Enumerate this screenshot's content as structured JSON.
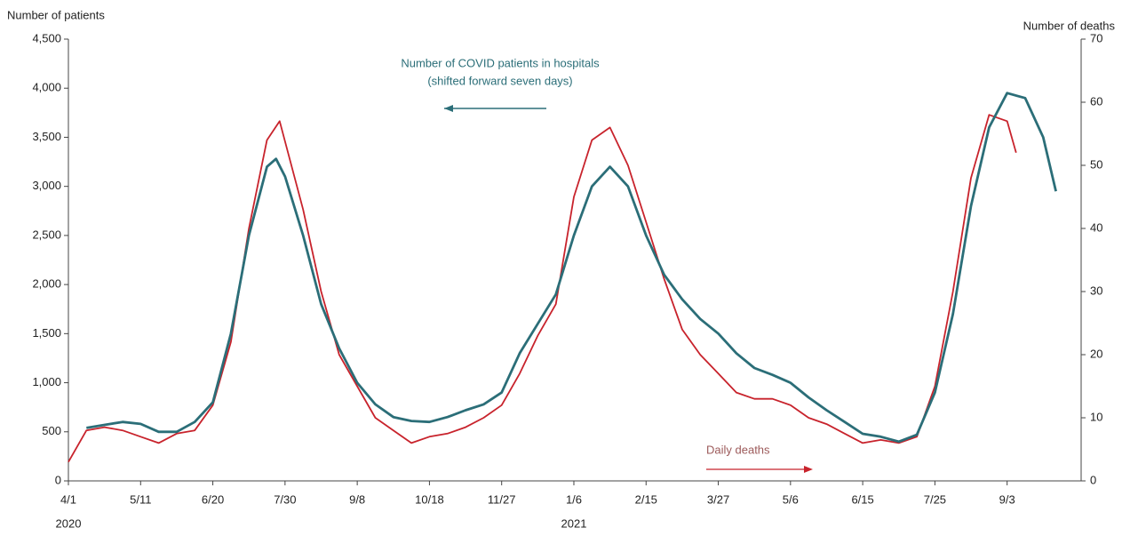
{
  "chart_data": {
    "type": "line",
    "ylabel": "Number of patients",
    "y2label": "Number of deaths",
    "ylim": [
      0,
      4500
    ],
    "yticks": [
      0,
      500,
      {
        "value": 1000,
        "label": "1,000"
      },
      {
        "value": 1500,
        "label": "1,500"
      },
      {
        "value": 2000,
        "label": "2,000"
      },
      {
        "value": 2500,
        "label": "2,500"
      },
      {
        "value": 3000,
        "label": "3,000"
      },
      {
        "value": 3500,
        "label": "3,500"
      },
      {
        "value": 4000,
        "label": "4,000"
      },
      {
        "value": 4500,
        "label": "4,500"
      }
    ],
    "y2lim": [
      0,
      70
    ],
    "y2ticks": [
      0,
      10,
      20,
      30,
      40,
      50,
      60,
      70
    ],
    "xlim": [
      "2020-04-01",
      "2021-10-14"
    ],
    "xticks": [
      {
        "value": "2020-04-01",
        "label": "4/1"
      },
      {
        "value": "2020-05-11",
        "label": "5/11"
      },
      {
        "value": "2020-06-20",
        "label": "6/20"
      },
      {
        "value": "2020-07-30",
        "label": "7/30"
      },
      {
        "value": "2020-09-08",
        "label": "9/8"
      },
      {
        "value": "2020-10-18",
        "label": "10/18"
      },
      {
        "value": "2020-11-27",
        "label": "11/27"
      },
      {
        "value": "2021-01-06",
        "label": "1/6"
      },
      {
        "value": "2021-02-15",
        "label": "2/15"
      },
      {
        "value": "2021-03-27",
        "label": "3/27"
      },
      {
        "value": "2021-05-06",
        "label": "5/6"
      },
      {
        "value": "2021-06-15",
        "label": "6/15"
      },
      {
        "value": "2021-07-25",
        "label": "7/25"
      },
      {
        "value": "2021-09-03",
        "label": "9/3"
      }
    ],
    "year_labels": [
      {
        "value": "2020-04-01",
        "label": "2020"
      },
      {
        "value": "2021-01-06",
        "label": "2021"
      }
    ],
    "series": [
      {
        "name": "Number of COVID patients in hospitals",
        "note": "(shifted forward seven days)",
        "color": "#2b6e78",
        "axis": "y",
        "x": [
          "2020-04-11",
          "2020-04-21",
          "2020-05-01",
          "2020-05-11",
          "2020-05-21",
          "2020-05-31",
          "2020-06-10",
          "2020-06-20",
          "2020-06-30",
          "2020-07-10",
          "2020-07-20",
          "2020-07-25",
          "2020-07-30",
          "2020-08-09",
          "2020-08-19",
          "2020-08-29",
          "2020-09-08",
          "2020-09-18",
          "2020-09-28",
          "2020-10-08",
          "2020-10-18",
          "2020-10-28",
          "2020-11-07",
          "2020-11-17",
          "2020-11-27",
          "2020-12-07",
          "2020-12-17",
          "2020-12-27",
          "2021-01-06",
          "2021-01-16",
          "2021-01-26",
          "2021-02-05",
          "2021-02-15",
          "2021-02-25",
          "2021-03-07",
          "2021-03-17",
          "2021-03-27",
          "2021-04-06",
          "2021-04-16",
          "2021-04-26",
          "2021-05-06",
          "2021-05-16",
          "2021-05-26",
          "2021-06-05",
          "2021-06-15",
          "2021-06-25",
          "2021-07-05",
          "2021-07-15",
          "2021-07-25",
          "2021-08-04",
          "2021-08-14",
          "2021-08-24",
          "2021-09-03",
          "2021-09-13",
          "2021-09-23",
          "2021-09-30"
        ],
        "values": [
          540,
          570,
          600,
          580,
          500,
          500,
          600,
          800,
          1500,
          2500,
          3200,
          3280,
          3100,
          2500,
          1800,
          1350,
          1000,
          780,
          650,
          610,
          600,
          650,
          720,
          780,
          900,
          1300,
          1600,
          1900,
          2500,
          3000,
          3200,
          3000,
          2500,
          2100,
          1850,
          1650,
          1500,
          1300,
          1150,
          1080,
          1000,
          850,
          720,
          600,
          480,
          450,
          400,
          470,
          900,
          1700,
          2800,
          3600,
          3950,
          3900,
          3500,
          2950
        ]
      },
      {
        "name": "Daily deaths",
        "color": "#c8232c",
        "axis": "y2",
        "x": [
          "2020-04-01",
          "2020-04-11",
          "2020-04-21",
          "2020-05-01",
          "2020-05-11",
          "2020-05-21",
          "2020-05-31",
          "2020-06-10",
          "2020-06-20",
          "2020-06-30",
          "2020-07-10",
          "2020-07-20",
          "2020-07-27",
          "2020-08-09",
          "2020-08-19",
          "2020-08-29",
          "2020-09-08",
          "2020-09-18",
          "2020-09-28",
          "2020-10-08",
          "2020-10-18",
          "2020-10-28",
          "2020-11-07",
          "2020-11-17",
          "2020-11-27",
          "2020-12-07",
          "2020-12-17",
          "2020-12-27",
          "2021-01-06",
          "2021-01-16",
          "2021-01-26",
          "2021-02-05",
          "2021-02-15",
          "2021-02-25",
          "2021-03-07",
          "2021-03-17",
          "2021-03-27",
          "2021-04-06",
          "2021-04-16",
          "2021-04-26",
          "2021-05-06",
          "2021-05-16",
          "2021-05-26",
          "2021-06-05",
          "2021-06-15",
          "2021-06-25",
          "2021-07-05",
          "2021-07-15",
          "2021-07-25",
          "2021-08-04",
          "2021-08-14",
          "2021-08-24",
          "2021-09-03",
          "2021-09-08"
        ],
        "values": [
          3,
          8,
          8.5,
          8,
          7,
          6,
          7.5,
          8,
          12,
          22,
          40,
          54,
          57,
          43,
          30,
          20,
          15,
          10,
          8,
          6,
          7,
          7.5,
          8.5,
          10,
          12,
          17,
          23,
          28,
          45,
          54,
          56,
          50,
          41,
          32,
          24,
          20,
          17,
          14,
          13,
          13,
          12,
          10,
          9,
          7.5,
          6,
          6.5,
          6,
          7,
          15,
          30,
          48,
          58,
          57,
          52
        ]
      }
    ]
  }
}
